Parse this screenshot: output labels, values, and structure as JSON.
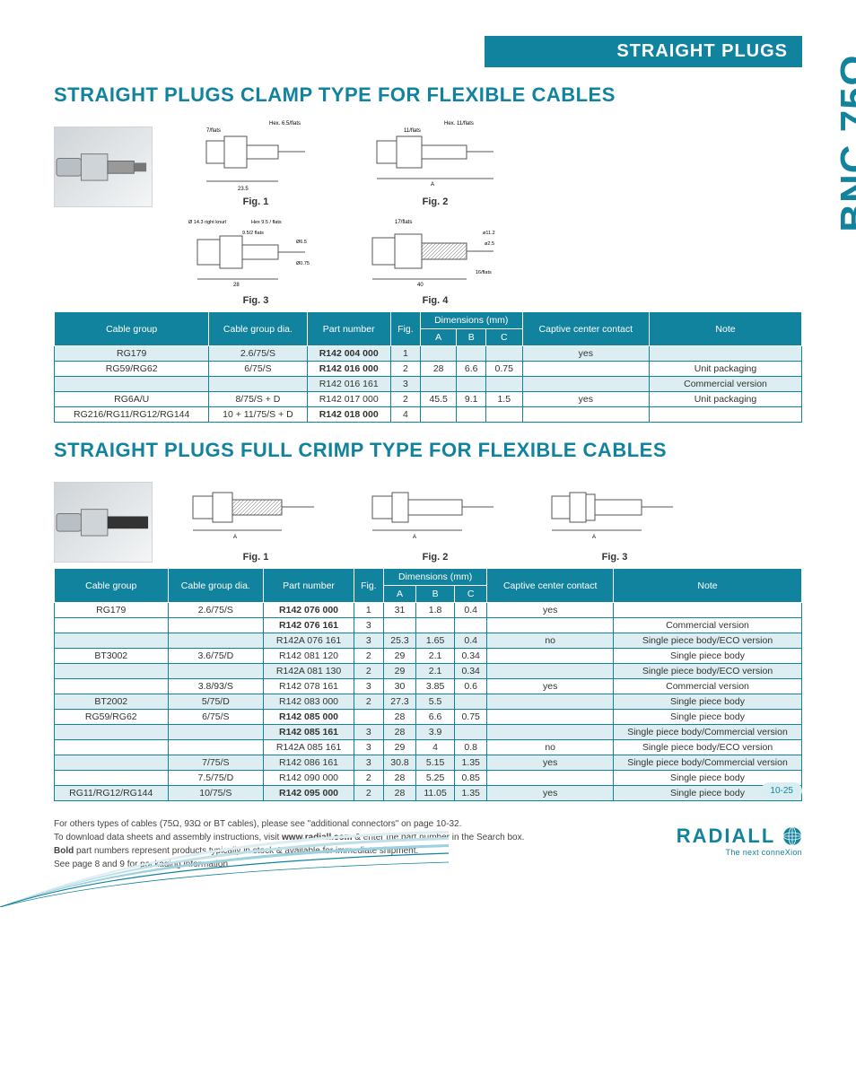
{
  "page": {
    "header_band": "STRAIGHT PLUGS",
    "side_label": "BNC 75Ω",
    "page_number": "10-25",
    "brand_logo": "RADIALL",
    "brand_tag": "The next conneXion"
  },
  "colors": {
    "accent": "#12839e",
    "shade": "#dceef2",
    "page_num_bg": "#d9eef2"
  },
  "section1": {
    "title": "STRAIGHT PLUGS CLAMP TYPE FOR FLEXIBLE CABLES",
    "figs": {
      "f1": "Fig. 1",
      "f2": "Fig. 2",
      "f3": "Fig. 3",
      "f4": "Fig. 4",
      "f1_labels": {
        "top": "Hex. 6.5/flats",
        "left": "7/flats",
        "dim": "23.5"
      },
      "f2_labels": {
        "top": "Hex. 11/flats",
        "left": "11/flats",
        "dimA": "A"
      },
      "f3_labels": {
        "l1": "Ø 14.3 right knurl",
        "l2": "Hex 9.5 / flats",
        "l3": "9.5/2 flats",
        "l4": "Ø6.5",
        "l5": "Ø0.75",
        "dim": "28"
      },
      "f4_labels": {
        "top": "17/flats",
        "r1": "ø11.2",
        "r2": "ø2.5",
        "r3": "16/flats",
        "dim": "40"
      }
    },
    "table": {
      "headers": {
        "cable_group": "Cable group",
        "cable_group_dia": "Cable group dia.",
        "part_number": "Part number",
        "fig": "Fig.",
        "dims": "Dimensions (mm)",
        "dimA": "A",
        "dimB": "B",
        "dimC": "C",
        "captive": "Captive center contact",
        "note": "Note"
      },
      "rows": [
        {
          "cg": "RG179",
          "dia": "2.6/75/S",
          "pn": "R142 004 000",
          "pn_bold": true,
          "fig": "1",
          "A": "",
          "B": "",
          "C": "",
          "cap": "yes",
          "note": "",
          "shade": true
        },
        {
          "cg": "RG59/RG62",
          "dia": "6/75/S",
          "pn": "R142 016 000",
          "pn_bold": true,
          "fig": "2",
          "A": "28",
          "B": "6.6",
          "C": "0.75",
          "cap": "",
          "note": "Unit packaging"
        },
        {
          "cg": "",
          "dia": "",
          "pn": "R142 016 161",
          "pn_bold": false,
          "fig": "3",
          "A": "",
          "B": "",
          "C": "",
          "cap": "",
          "note": "Commercial version",
          "shade": true
        },
        {
          "cg": "RG6A/U",
          "dia": "8/75/S + D",
          "pn": "R142 017 000",
          "pn_bold": false,
          "fig": "2",
          "A": "45.5",
          "B": "9.1",
          "C": "1.5",
          "cap": "yes",
          "note": "Unit packaging"
        },
        {
          "cg": "RG216/RG11/RG12/RG144",
          "dia": "10 + 11/75/S + D",
          "pn": "R142 018 000",
          "pn_bold": true,
          "fig": "4",
          "A": "",
          "B": "",
          "C": "",
          "cap": "",
          "note": ""
        }
      ]
    }
  },
  "section2": {
    "title": "STRAIGHT PLUGS FULL CRIMP TYPE FOR FLEXIBLE CABLES",
    "figs": {
      "f1": "Fig. 1",
      "f2": "Fig. 2",
      "f3": "Fig. 3"
    },
    "table": {
      "headers": {
        "cable_group": "Cable group",
        "cable_group_dia": "Cable group dia.",
        "part_number": "Part number",
        "fig": "Fig.",
        "dims": "Dimensions (mm)",
        "dimA": "A",
        "dimB": "B",
        "dimC": "C",
        "captive": "Captive center contact",
        "note": "Note"
      },
      "rows": [
        {
          "cg": "RG179",
          "dia": "2.6/75/S",
          "pn": "R142 076 000",
          "pn_bold": true,
          "fig": "1",
          "A": "31",
          "B": "1.8",
          "C": "0.4",
          "cap": "yes",
          "note": ""
        },
        {
          "cg": "",
          "dia": "",
          "pn": "R142 076 161",
          "pn_bold": true,
          "fig": "3",
          "A": "",
          "B": "",
          "C": "",
          "cap": "",
          "note": "Commercial version"
        },
        {
          "cg": "",
          "dia": "",
          "pn": "R142A 076 161",
          "pn_bold": false,
          "fig": "3",
          "A": "25.3",
          "B": "1.65",
          "C": "0.4",
          "cap": "no",
          "note": "Single piece body/ECO version",
          "shade": true
        },
        {
          "cg": "BT3002",
          "dia": "3.6/75/D",
          "pn": "R142 081 120",
          "pn_bold": false,
          "fig": "2",
          "A": "29",
          "B": "2.1",
          "C": "0.34",
          "cap": "",
          "note": "Single piece body"
        },
        {
          "cg": "",
          "dia": "",
          "pn": "R142A 081 130",
          "pn_bold": false,
          "fig": "2",
          "A": "29",
          "B": "2.1",
          "C": "0.34",
          "cap": "",
          "note": "Single piece body/ECO version",
          "shade": true
        },
        {
          "cg": "",
          "dia": "3.8/93/S",
          "pn": "R142 078 161",
          "pn_bold": false,
          "fig": "3",
          "A": "30",
          "B": "3.85",
          "C": "0.6",
          "cap": "yes",
          "note": "Commercial version"
        },
        {
          "cg": "BT2002",
          "dia": "5/75/D",
          "pn": "R142 083 000",
          "pn_bold": false,
          "fig": "2",
          "A": "27.3",
          "B": "5.5",
          "C": "",
          "cap": "",
          "note": "Single piece body",
          "shade": true
        },
        {
          "cg": "RG59/RG62",
          "dia": "6/75/S",
          "pn": "R142 085 000",
          "pn_bold": true,
          "fig": "",
          "A": "28",
          "B": "6.6",
          "C": "0.75",
          "cap": "",
          "note": "Single piece body"
        },
        {
          "cg": "",
          "dia": "",
          "pn": "R142 085 161",
          "pn_bold": true,
          "fig": "3",
          "A": "28",
          "B": "3.9",
          "C": "",
          "cap": "",
          "note": "Single piece body/Commercial version",
          "shade": true
        },
        {
          "cg": "",
          "dia": "",
          "pn": "R142A 085 161",
          "pn_bold": false,
          "fig": "3",
          "A": "29",
          "B": "4",
          "C": "0.8",
          "cap": "no",
          "note": "Single piece body/ECO version"
        },
        {
          "cg": "",
          "dia": "7/75/S",
          "pn": "R142 086 161",
          "pn_bold": false,
          "fig": "3",
          "A": "30.8",
          "B": "5.15",
          "C": "1.35",
          "cap": "yes",
          "note": "Single piece body/Commercial version",
          "shade": true
        },
        {
          "cg": "",
          "dia": "7.5/75/D",
          "pn": "R142 090 000",
          "pn_bold": false,
          "fig": "2",
          "A": "28",
          "B": "5.25",
          "C": "0.85",
          "cap": "",
          "note": "Single piece body"
        },
        {
          "cg": "RG11/RG12/RG144",
          "dia": "10/75/S",
          "pn": "R142 095 000",
          "pn_bold": true,
          "fig": "2",
          "A": "28",
          "B": "11.05",
          "C": "1.35",
          "cap": "yes",
          "note": "Single piece body",
          "shade": true
        }
      ]
    }
  },
  "notes": {
    "l1": "For others types of cables (75Ω, 93Ω or BT cables), please see \"additional connectors\" on page 10-32.",
    "l2a": "To download data sheets and assembly instructions, visit ",
    "l2b": "www.radiall.com",
    "l2c": " & enter the part number in the Search box.",
    "l3a": "Bold",
    "l3b": " part numbers represent products typically in stock & available for immediate shipment.",
    "l4": "See page 8 and 9 for packaging information."
  }
}
